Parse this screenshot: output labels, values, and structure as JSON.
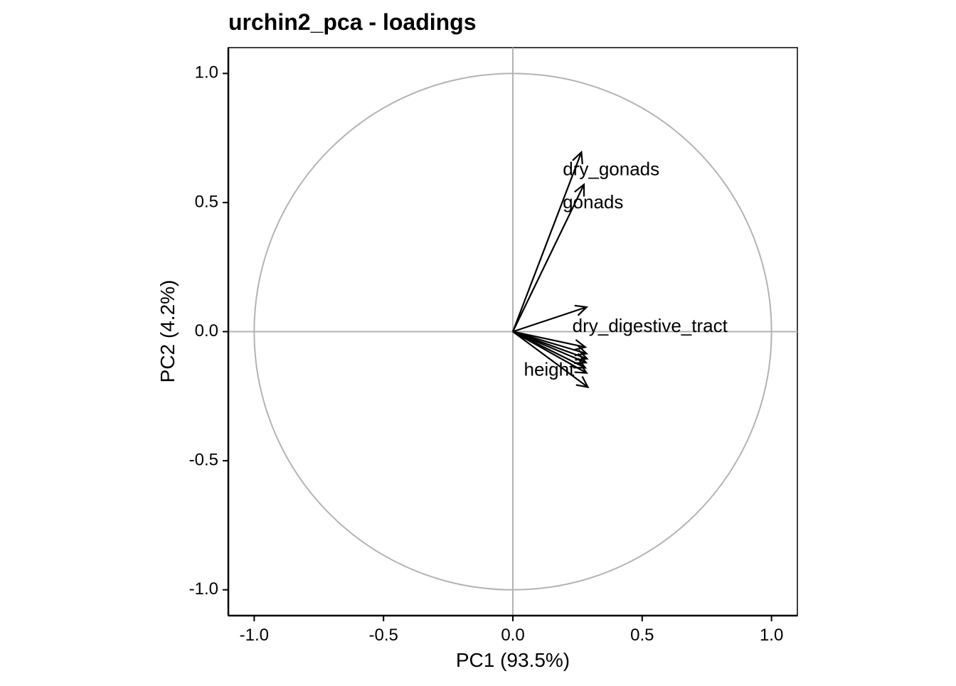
{
  "chart_data": {
    "type": "scatter",
    "title": "urchin2_pca - loadings",
    "xlabel": "PC1 (93.5%)",
    "ylabel": "PC2 (4.2%)",
    "xlim": [
      -1.1,
      1.1
    ],
    "ylim": [
      -1.1,
      1.1
    ],
    "x_ticks": [
      -1.0,
      -0.5,
      0.0,
      0.5,
      1.0
    ],
    "y_ticks": [
      -1.0,
      -0.5,
      0.0,
      0.5,
      1.0
    ],
    "x_tick_labels": [
      "-1.0",
      "-0.5",
      "0.0",
      "0.5",
      "1.0"
    ],
    "y_tick_labels": [
      "-1.0",
      "-0.5",
      "0.0",
      "0.5",
      "1.0"
    ],
    "grid": false,
    "unit_circle": true,
    "reference_lines": {
      "x": 0,
      "y": 0
    },
    "arrow_origin": [
      0,
      0
    ],
    "loadings": [
      {
        "x": 0.265,
        "y": 0.695
      },
      {
        "x": 0.275,
        "y": 0.57
      },
      {
        "x": 0.285,
        "y": 0.095
      },
      {
        "x": 0.28,
        "y": -0.06
      },
      {
        "x": 0.285,
        "y": -0.085
      },
      {
        "x": 0.287,
        "y": -0.105
      },
      {
        "x": 0.283,
        "y": -0.12
      },
      {
        "x": 0.28,
        "y": -0.14
      },
      {
        "x": 0.285,
        "y": -0.16
      },
      {
        "x": 0.29,
        "y": -0.215
      }
    ],
    "labels": [
      {
        "text": "dry_gonads",
        "x": 0.38,
        "y": 0.625
      },
      {
        "text": "gonads",
        "x": 0.31,
        "y": 0.497
      },
      {
        "text": "dry_digestive_tract",
        "x": 0.53,
        "y": 0.018
      },
      {
        "text": "height",
        "x": 0.14,
        "y": -0.152
      }
    ],
    "colors": {
      "arrows": "#000000",
      "reference": "#b3b3b3",
      "axis": "#000000",
      "text": "#000000"
    }
  }
}
